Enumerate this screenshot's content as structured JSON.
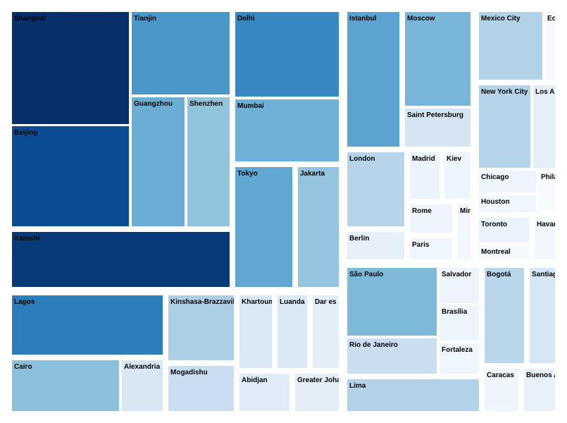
{
  "chart_data": {
    "type": "treemap",
    "value_kind": "population (relative area)",
    "groups": [
      {
        "cities": [
          "Shanghai",
          "Beijing",
          "Karachi",
          "Tianjin",
          "Guangzhou",
          "Shenzhen",
          "Delhi",
          "Mumbai",
          "Tokyo",
          "Jakarta"
        ]
      },
      {
        "cities": [
          "Lagos",
          "Cairo",
          "Alexandria",
          "Kinshasa-Brazzaville",
          "Mogadishu",
          "Khartoum",
          "Luanda",
          "Dar es Salaam",
          "Abidjan",
          "Greater Johannesburg"
        ]
      },
      {
        "cities": [
          "Istanbul",
          "Moscow",
          "Saint Petersburg",
          "London",
          "Berlin",
          "Madrid",
          "Kiev",
          "Rome",
          "Paris",
          "Minsk"
        ]
      },
      {
        "cities": [
          "Mexico City",
          "Ecatepec",
          "New York City",
          "Los Angeles",
          "Chicago",
          "Philadelphia",
          "Houston",
          "Toronto",
          "Montreal",
          "Havana"
        ]
      },
      {
        "cities": [
          "São Paulo",
          "Rio de Janeiro",
          "Salvador",
          "Brasília",
          "Fortaleza",
          "Lima",
          "Bogotá",
          "Santiago",
          "Caracas",
          "Buenos Aires"
        ]
      }
    ],
    "cells": [
      {
        "label": "Shanghai",
        "value": 24.2,
        "color": "#08306b"
      },
      {
        "label": "Tianjin",
        "value": 15.6,
        "color": "#4a97c9"
      },
      {
        "label": "Beijing",
        "value": 21.7,
        "color": "#0b4d94"
      },
      {
        "label": "Guangzhou",
        "value": 13.1,
        "color": "#6aaed6"
      },
      {
        "label": "Shenzhen",
        "value": 12.5,
        "color": "#92c4de"
      },
      {
        "label": "Karachi",
        "value": 23.5,
        "color": "#083a7a"
      },
      {
        "label": "Delhi",
        "value": 16.8,
        "color": "#3787c0"
      },
      {
        "label": "Mumbai",
        "value": 12.4,
        "color": "#6fb0d7"
      },
      {
        "label": "Tokyo",
        "value": 13.5,
        "color": "#60a7d2"
      },
      {
        "label": "Jakarta",
        "value": 10.1,
        "color": "#94c4df"
      },
      {
        "label": "Lagos",
        "value": 16.1,
        "color": "#2d7dbb"
      },
      {
        "label": "Kinshasa-Brazzaville",
        "value": 11.6,
        "color": "#abd0e6"
      },
      {
        "label": "Mogadishu",
        "value": 6.3,
        "color": "#cbdef1"
      },
      {
        "label": "Cairo",
        "value": 9.5,
        "color": "#8cc0dd"
      },
      {
        "label": "Alexandria",
        "value": 4.6,
        "color": "#d9e7f5"
      },
      {
        "label": "Khartoum",
        "value": 5.2,
        "color": "#dbe9f6"
      },
      {
        "label": "Luanda",
        "value": 5.0,
        "color": "#dbe9f6"
      },
      {
        "label": "Dar es Salaam",
        "value": 4.4,
        "color": "#e3eef9"
      },
      {
        "label": "Abidjan",
        "value": 4.7,
        "color": "#dfebf7"
      },
      {
        "label": "Greater Johannesburg",
        "value": 4.4,
        "color": "#e3eef9"
      },
      {
        "label": "Istanbul",
        "value": 14.7,
        "color": "#5ba3d0"
      },
      {
        "label": "Moscow",
        "value": 12.2,
        "color": "#7ab6d9"
      },
      {
        "label": "Saint Petersburg",
        "value": 5.2,
        "color": "#d6e5f4"
      },
      {
        "label": "London",
        "value": 8.8,
        "color": "#b7d4ea"
      },
      {
        "label": "Berlin",
        "value": 3.5,
        "color": "#e7f0fa"
      },
      {
        "label": "Madrid",
        "value": 3.2,
        "color": "#ebf3fb"
      },
      {
        "label": "Kiev",
        "value": 2.9,
        "color": "#eef5fc"
      },
      {
        "label": "Rome",
        "value": 2.9,
        "color": "#eef5fc"
      },
      {
        "label": "Paris",
        "value": 2.2,
        "color": "#f0f6fd"
      },
      {
        "label": "Minsk",
        "value": 1.9,
        "color": "#f2f7fd"
      },
      {
        "label": "Mexico City",
        "value": 8.9,
        "color": "#b1d2e7"
      },
      {
        "label": "Ecatepec",
        "value": 1.7,
        "color": "#f7fbff"
      },
      {
        "label": "New York City",
        "value": 8.5,
        "color": "#b5d4e9"
      },
      {
        "label": "Los Angeles",
        "value": 3.9,
        "color": "#e5eff9"
      },
      {
        "label": "Chicago",
        "value": 2.7,
        "color": "#eef5fc"
      },
      {
        "label": "Philadelphia",
        "value": 1.6,
        "color": "#f7fbff"
      },
      {
        "label": "Houston",
        "value": 2.3,
        "color": "#f0f6fd"
      },
      {
        "label": "Toronto",
        "value": 2.7,
        "color": "#eaf2fb"
      },
      {
        "label": "Montreal",
        "value": 1.7,
        "color": "#f4f9fe"
      },
      {
        "label": "Havana",
        "value": 2.1,
        "color": "#f2f7fd"
      },
      {
        "label": "São Paulo",
        "value": 12.0,
        "color": "#7fb9da"
      },
      {
        "label": "Rio de Janeiro",
        "value": 6.5,
        "color": "#cadef0"
      },
      {
        "label": "Salvador",
        "value": 2.9,
        "color": "#edf4fc"
      },
      {
        "label": "Brasília",
        "value": 2.9,
        "color": "#edf4fc"
      },
      {
        "label": "Fortaleza",
        "value": 2.6,
        "color": "#f0f6fd"
      },
      {
        "label": "Lima",
        "value": 8.9,
        "color": "#b2d2e8"
      },
      {
        "label": "Bogotá",
        "value": 7.9,
        "color": "#bad6eb"
      },
      {
        "label": "Santiago",
        "value": 5.2,
        "color": "#d6e6f4"
      },
      {
        "label": "Caracas",
        "value": 2.1,
        "color": "#eef5fc"
      },
      {
        "label": "Buenos Aires",
        "value": 3.1,
        "color": "#e8f1fa"
      }
    ]
  }
}
